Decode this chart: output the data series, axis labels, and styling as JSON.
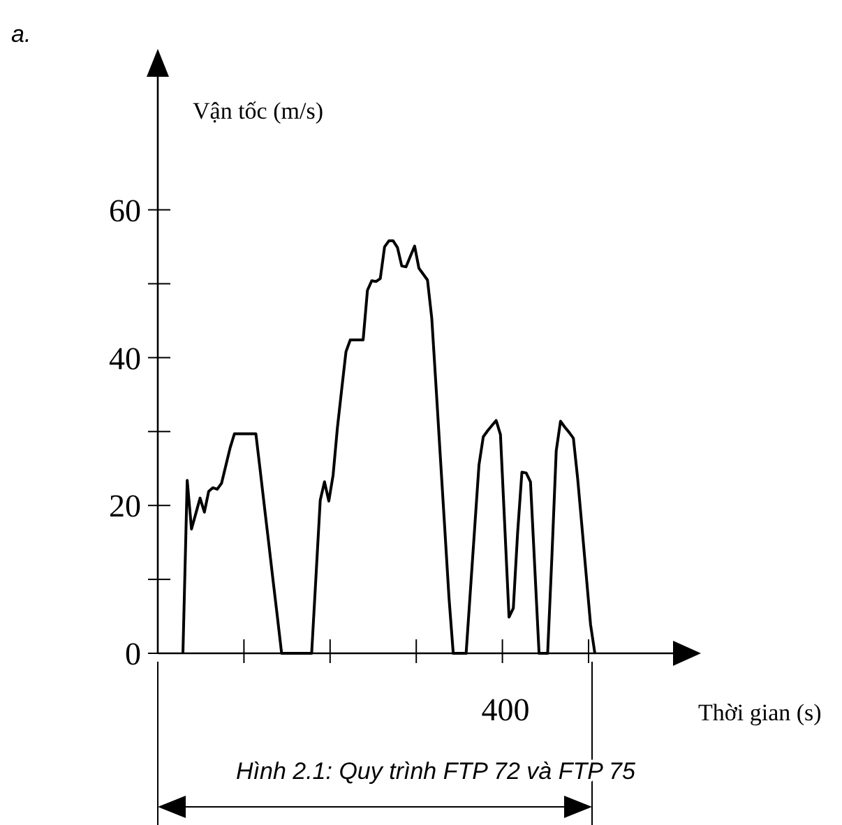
{
  "chart_data": {
    "type": "line",
    "title": "Hình 2.1: Quy trình FTP 72 và FTP 75",
    "xlabel": "Thời gian (s)",
    "ylabel": "Vận tốc (m/s)",
    "annotations": [
      "a.",
      "400"
    ],
    "categories": [
      null,
      null,
      null,
      null,
      null,
      null,
      null,
      null,
      null,
      null,
      null,
      null,
      null,
      null,
      null,
      null,
      null,
      null,
      null,
      null,
      null,
      null,
      null,
      null,
      null,
      null,
      null,
      null,
      null,
      null,
      null,
      null,
      null,
      null,
      null,
      null,
      null,
      null,
      null,
      null,
      null,
      null,
      null,
      null,
      null,
      null,
      null,
      null,
      null,
      null,
      null,
      null,
      null,
      null,
      null,
      null,
      null,
      null,
      null,
      null,
      null,
      null,
      null,
      null,
      null,
      null,
      null,
      null,
      null,
      null,
      null,
      null,
      null,
      null,
      null,
      null,
      null,
      null,
      null,
      null,
      null,
      null,
      null,
      null,
      null,
      null,
      null,
      null,
      null,
      null,
      null,
      null,
      null,
      null,
      null,
      null,
      null
    ],
    "series": [
      {
        "color": "#000000",
        "values": [
          0,
          23.4,
          16.8,
          18.9,
          21,
          19.1,
          21.9,
          22.4,
          22.2,
          23.0,
          25.4,
          27.8,
          29.7,
          29.7,
          29.7,
          29.7,
          29.7,
          29.7,
          24.8,
          19.8,
          14.9,
          9.9,
          5.0,
          0,
          0,
          0,
          0,
          0,
          0,
          0,
          0,
          10.3,
          20.7,
          23.2,
          20.6,
          24.1,
          30.5,
          35.7,
          40.8,
          42.4,
          42.4,
          42.4,
          42.4,
          49.1,
          50.4,
          50.3,
          50.7,
          55.0,
          55.8,
          55.8,
          54.9,
          52.4,
          52.3,
          53.7,
          55.1,
          52.1,
          51.3,
          50.5,
          45.3,
          36.0,
          26.5,
          17.1,
          7.6,
          0,
          0,
          0,
          0,
          8.5,
          17.0,
          25.5,
          29.3,
          30.1,
          30.8,
          31.5,
          29.6,
          17.3,
          4.9,
          6.1,
          16.3,
          24.5,
          24.4,
          23.2,
          11.6,
          0,
          0,
          0,
          13.2,
          27.4,
          31.4,
          30.6,
          29.9,
          29.1,
          23.6,
          17.1,
          10.5,
          3.9,
          0
        ]
      }
    ],
    "ylim": [
      0,
      78
    ],
    "yticks": [
      0,
      {
        "value": 10,
        "label": null
      },
      20,
      {
        "value": 30,
        "label": null
      },
      40,
      {
        "value": 50,
        "label": null
      },
      60
    ],
    "grid": false,
    "marker": "none",
    "line_style": "solid"
  }
}
